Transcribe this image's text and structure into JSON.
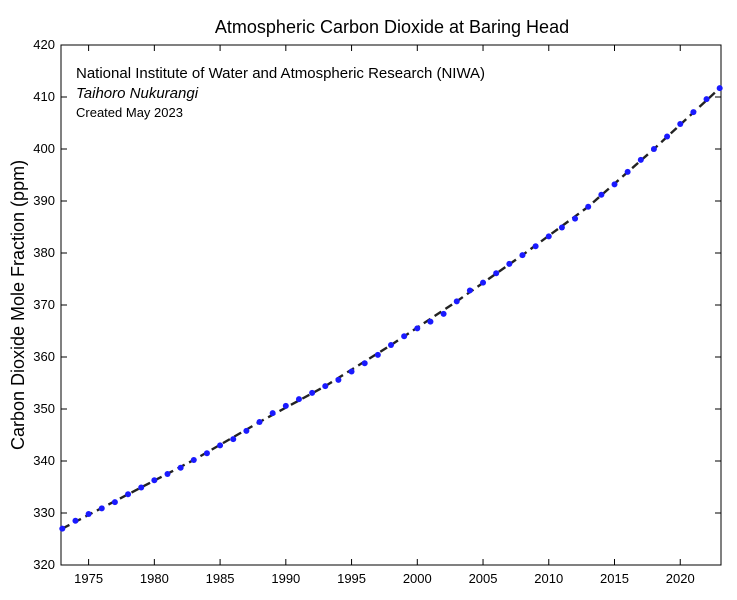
{
  "chart_data": {
    "type": "scatter",
    "title": "Atmospheric Carbon Dioxide at Baring Head",
    "xlabel": "",
    "ylabel": "Carbon Dioxide Mole Fraction (ppm)",
    "xlim": [
      1972.9,
      2023.1
    ],
    "ylim": [
      320,
      420
    ],
    "x_ticks": [
      1975,
      1980,
      1985,
      1990,
      1995,
      2000,
      2005,
      2010,
      2015,
      2020
    ],
    "y_ticks": [
      320,
      330,
      340,
      350,
      360,
      370,
      380,
      390,
      400,
      410,
      420
    ],
    "grid": false,
    "annotations": [
      "National Institute of Water and Atmospheric Research (NIWA)",
      "Taihoro Nukurangi",
      "Created May 2023"
    ],
    "colors": {
      "observations": "#1a1aff",
      "trend": "#222222",
      "axis": "#000000"
    },
    "series": [
      {
        "kind": "observations",
        "x": [
          1973.0,
          1974.0,
          1975.0,
          1976.0,
          1977.0,
          1978.0,
          1979.0,
          1980.0,
          1981.0,
          1982.0,
          1983.0,
          1984.0,
          1985.0,
          1986.0,
          1987.0,
          1988.0,
          1989.0,
          1990.0,
          1991.0,
          1992.0,
          1993.0,
          1994.0,
          1995.0,
          1996.0,
          1997.0,
          1998.0,
          1999.0,
          2000.0,
          2001.0,
          2002.0,
          2003.0,
          2004.0,
          2005.0,
          2006.0,
          2007.0,
          2008.0,
          2009.0,
          2010.0,
          2011.0,
          2012.0,
          2013.0,
          2014.0,
          2015.0,
          2016.0,
          2017.0,
          2018.0,
          2019.0,
          2020.0,
          2021.0,
          2022.0,
          2023.0
        ],
        "y": [
          327.0,
          328.5,
          329.8,
          330.9,
          332.1,
          333.6,
          334.9,
          336.3,
          337.5,
          338.7,
          340.2,
          341.5,
          343.0,
          344.2,
          345.8,
          347.5,
          349.2,
          350.6,
          351.9,
          353.1,
          354.4,
          355.6,
          357.2,
          358.8,
          360.4,
          362.3,
          364.0,
          365.5,
          366.8,
          368.3,
          370.7,
          372.8,
          374.3,
          376.1,
          377.9,
          379.6,
          381.3,
          383.2,
          384.9,
          386.6,
          388.9,
          391.2,
          393.2,
          395.6,
          397.9,
          400.0,
          402.4,
          404.8,
          407.1,
          409.6,
          411.7
        ]
      },
      {
        "kind": "trend",
        "x": [
          1973.0,
          1978.0,
          1983.0,
          1988.0,
          1993.0,
          1998.0,
          2003.0,
          2008.0,
          2013.0,
          2018.0,
          2023.0
        ],
        "y": [
          327.0,
          333.6,
          340.2,
          347.5,
          354.4,
          362.3,
          370.7,
          379.6,
          388.9,
          400.0,
          411.7
        ]
      }
    ]
  }
}
